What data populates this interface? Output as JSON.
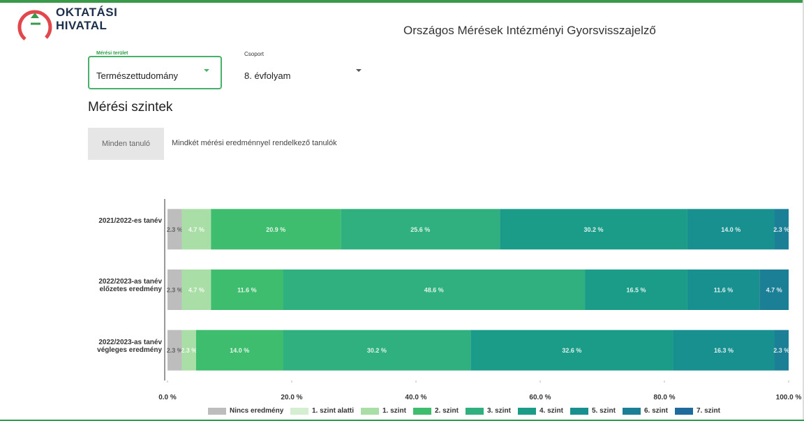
{
  "header": {
    "brand": [
      "OKTATÁSI",
      "HIVATAL"
    ],
    "title": "Országos Mérések Intézményi Gyorsvisszajelző"
  },
  "controls": {
    "field1_label": "Mérési terület",
    "field1_value": "Természettudomány",
    "field2_label": "Csoport",
    "field2_value": "8. évfolyam"
  },
  "section": {
    "heading": "Mérési szintek",
    "tabs": [
      "Minden tanuló",
      "Mindkét mérési eredménnyel rendelkező tanulók"
    ]
  },
  "chart_data": {
    "type": "stacked-barh",
    "categories": [
      "2021/2022-es tanév",
      "2022/2023-as tanév előzetes eredmény",
      "2022/2023-as tanév végleges eredmény"
    ],
    "series": [
      {
        "name": "Nincs eredmény",
        "color": "#bdbdbd",
        "values": [
          2.3,
          2.3,
          2.3
        ],
        "value_labels": [
          "2.3 %",
          "2.3 %",
          "2.3 %"
        ]
      },
      {
        "name": "1. szint alatti",
        "color": "#d3efcf",
        "values": [
          0,
          0,
          0
        ],
        "value_labels": [
          null,
          null,
          null
        ]
      },
      {
        "name": "1. szint",
        "color": "#a9dea6",
        "values": [
          4.7,
          4.7,
          2.3
        ],
        "value_labels": [
          "4.7 %",
          "4.7 %",
          "2.3 %"
        ]
      },
      {
        "name": "2. szint",
        "color": "#3fbd6e",
        "values": [
          20.9,
          11.6,
          14.0
        ],
        "value_labels": [
          "20.9 %",
          "11.6 %",
          "14.0 %"
        ]
      },
      {
        "name": "3. szint",
        "color": "#2fb07e",
        "values": [
          25.6,
          48.6,
          30.2
        ],
        "value_labels": [
          "25.6 %",
          "48.6 %",
          "30.2 %"
        ]
      },
      {
        "name": "4. szint",
        "color": "#1a9c88",
        "values": [
          30.2,
          16.5,
          32.6
        ],
        "value_labels": [
          "30.2 %",
          "16.5 %",
          "32.6 %"
        ]
      },
      {
        "name": "5. szint",
        "color": "#17908f",
        "values": [
          14.0,
          11.6,
          16.3
        ],
        "value_labels": [
          "14.0 %",
          "11.6 %",
          "16.3 %"
        ]
      },
      {
        "name": "6. szint",
        "color": "#1b7f95",
        "values": [
          2.3,
          4.7,
          2.3
        ],
        "value_labels": [
          "2.3 %",
          "4.7 %",
          "2.3 %"
        ]
      },
      {
        "name": "7. szint",
        "color": "#1f6c9c",
        "values": [
          0,
          0,
          0
        ],
        "value_labels": [
          null,
          null,
          null
        ]
      }
    ],
    "xlim": [
      0,
      100
    ],
    "xticks": [
      {
        "value": 0,
        "label": "0.0 %"
      },
      {
        "value": 20,
        "label": "20.0 %"
      },
      {
        "value": 40,
        "label": "40.0 %"
      },
      {
        "value": 60,
        "label": "60.0 %"
      },
      {
        "value": 80,
        "label": "80.0 %"
      },
      {
        "value": 100,
        "label": "100.0 %"
      }
    ],
    "legend": "bottom"
  }
}
